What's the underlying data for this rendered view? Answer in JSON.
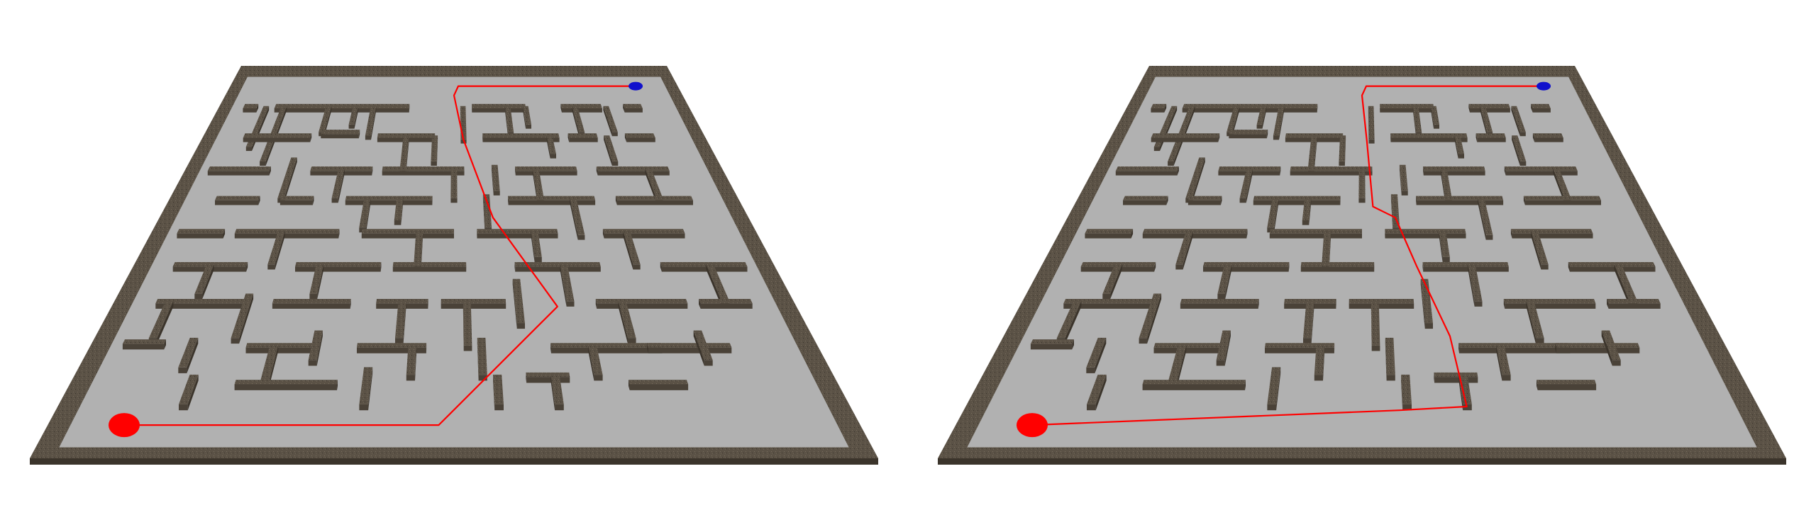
{
  "colors": {
    "background": "#ffffff",
    "wall_top": "#5b5246",
    "wall_side": "#3b342b",
    "wall_front": "#4a4238",
    "floor": "#b1b1b1",
    "path": "#ff0000",
    "start_marker": "#ff0000",
    "goal_marker": "#1010cc"
  },
  "panels": [
    {
      "name": "left",
      "path": [
        [
          0.07,
          0.94
        ],
        [
          0.48,
          0.94
        ],
        [
          0.66,
          0.62
        ],
        [
          0.57,
          0.38
        ],
        [
          0.52,
          0.17
        ],
        [
          0.5,
          0.05
        ],
        [
          0.51,
          0.025
        ],
        [
          0.93,
          0.025
        ]
      ]
    },
    {
      "name": "right",
      "path": [
        [
          0.07,
          0.94
        ],
        [
          0.55,
          0.9
        ],
        [
          0.64,
          0.89
        ],
        [
          0.63,
          0.7
        ],
        [
          0.59,
          0.51
        ],
        [
          0.56,
          0.38
        ],
        [
          0.52,
          0.35
        ],
        [
          0.51,
          0.17
        ],
        [
          0.5,
          0.05
        ],
        [
          0.51,
          0.025
        ],
        [
          0.93,
          0.025
        ]
      ]
    }
  ]
}
